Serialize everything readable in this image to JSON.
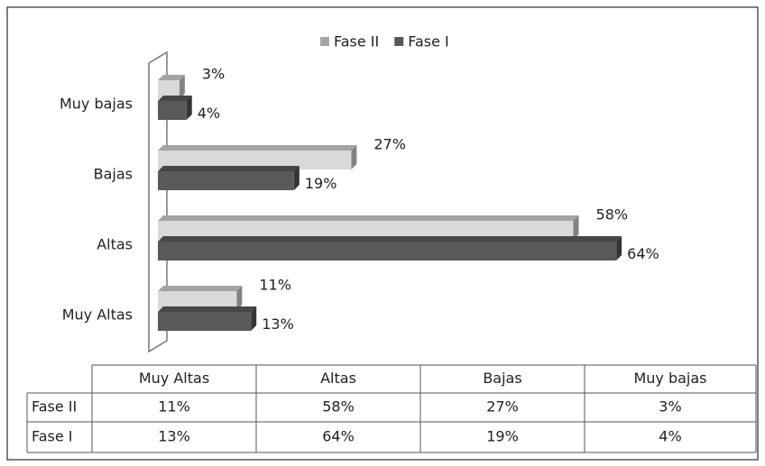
{
  "chart_data": {
    "type": "bar",
    "orientation": "horizontal",
    "categories": [
      "Muy Altas",
      "Altas",
      "Bajas",
      "Muy bajas"
    ],
    "series": [
      {
        "name": "Fase II",
        "color": "#d9d9d9",
        "values": [
          11,
          58,
          27,
          3
        ],
        "value_labels": [
          "11%",
          "58%",
          "27%",
          "3%"
        ]
      },
      {
        "name": "Fase I",
        "color": "#595959",
        "values": [
          13,
          64,
          19,
          4
        ],
        "value_labels": [
          "13%",
          "64%",
          "19%",
          "4%"
        ]
      }
    ],
    "legend": "top",
    "data_table": true
  }
}
